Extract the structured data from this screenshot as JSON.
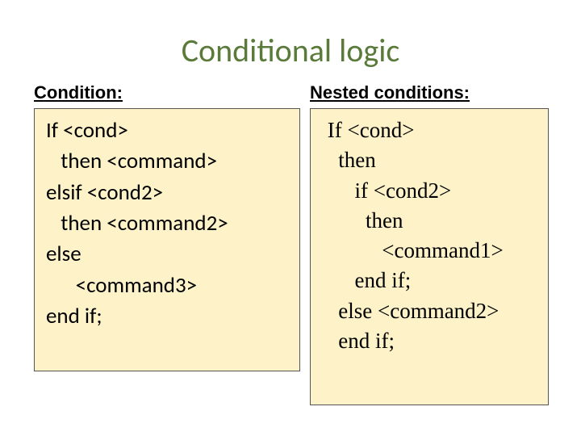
{
  "title": "Conditional logic",
  "title_color": "#5a7a3a",
  "background_color": "#ffffff",
  "left": {
    "label": "Condition:",
    "box_bg": "#fdf2c8",
    "box_border": "#555555",
    "lines": [
      "If <cond>",
      "   then <command>",
      "elsif <cond2>",
      "   then <command2>",
      "else",
      "      <command3>",
      "end if;"
    ],
    "font_family": "Calibri",
    "font_size_pt": 21
  },
  "right": {
    "label": "Nested conditions:",
    "box_bg": "#fdf2c8",
    "box_border": "#555555",
    "lines": [
      " If <cond>",
      "   then",
      "      if <cond2>",
      "        then",
      "           <command1>",
      "      end if;",
      "   else <command2>",
      "   end if;"
    ],
    "font_family": "Times New Roman",
    "font_size_pt": 21
  },
  "label_font": {
    "family": "Comic Sans MS",
    "size_pt": 17,
    "weight": "bold",
    "underline": true
  },
  "title_font": {
    "family": "Calibri",
    "size_pt": 30,
    "weight": "normal"
  }
}
